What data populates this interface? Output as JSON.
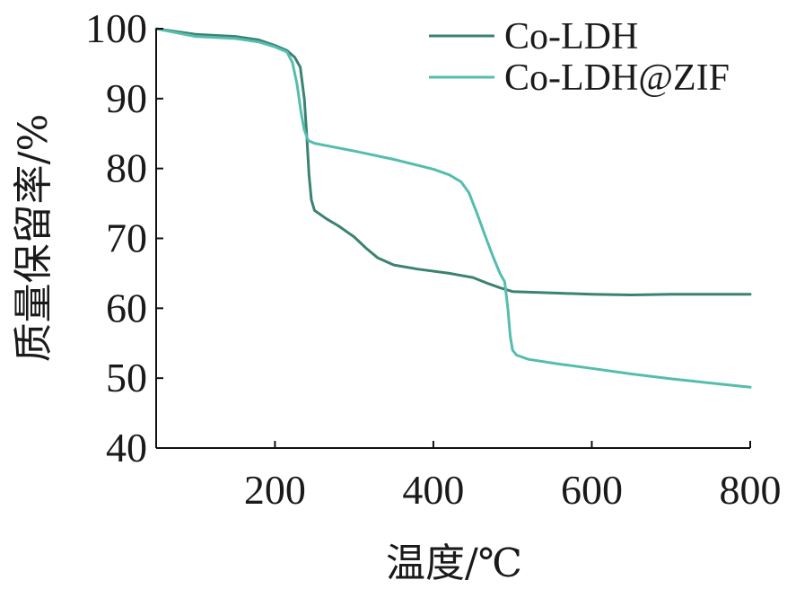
{
  "chart_data": {
    "type": "line",
    "xlabel": "温度/℃",
    "ylabel": "质量保留率/%",
    "xlim": [
      50,
      800
    ],
    "ylim": [
      40,
      100
    ],
    "xticks": [
      200,
      400,
      600,
      800
    ],
    "yticks": [
      40,
      50,
      60,
      70,
      80,
      90,
      100
    ],
    "grid": false,
    "legend_position": "top-right",
    "series": [
      {
        "name": "Co-LDH",
        "color": "#3a8272",
        "points": [
          [
            50,
            100
          ],
          [
            100,
            99.2
          ],
          [
            150,
            98.9
          ],
          [
            180,
            98.4
          ],
          [
            200,
            97.6
          ],
          [
            215,
            96.9
          ],
          [
            225,
            95.9
          ],
          [
            232,
            94.5
          ],
          [
            237,
            90
          ],
          [
            240,
            85
          ],
          [
            243,
            79
          ],
          [
            246,
            75.5
          ],
          [
            250,
            74
          ],
          [
            265,
            72.8
          ],
          [
            280,
            71.8
          ],
          [
            300,
            70.2
          ],
          [
            315,
            68.6
          ],
          [
            330,
            67.2
          ],
          [
            350,
            66.2
          ],
          [
            380,
            65.6
          ],
          [
            420,
            65
          ],
          [
            450,
            64.4
          ],
          [
            470,
            63.5
          ],
          [
            485,
            62.9
          ],
          [
            500,
            62.4
          ],
          [
            550,
            62.2
          ],
          [
            600,
            62
          ],
          [
            650,
            61.9
          ],
          [
            700,
            62
          ],
          [
            750,
            62
          ],
          [
            800,
            62
          ]
        ]
      },
      {
        "name": "Co-LDH@ZIF",
        "color": "#55bdad",
        "points": [
          [
            50,
            100
          ],
          [
            100,
            98.9
          ],
          [
            150,
            98.6
          ],
          [
            180,
            98.1
          ],
          [
            200,
            97.4
          ],
          [
            215,
            96.7
          ],
          [
            222,
            95.2
          ],
          [
            228,
            92
          ],
          [
            233,
            88
          ],
          [
            237,
            85.5
          ],
          [
            242,
            84
          ],
          [
            250,
            83.6
          ],
          [
            300,
            82.5
          ],
          [
            350,
            81.3
          ],
          [
            400,
            79.9
          ],
          [
            420,
            79.1
          ],
          [
            435,
            78.1
          ],
          [
            445,
            76.5
          ],
          [
            455,
            73.6
          ],
          [
            465,
            70.5
          ],
          [
            475,
            67.5
          ],
          [
            484,
            65
          ],
          [
            490,
            63.8
          ],
          [
            494,
            60
          ],
          [
            497,
            56
          ],
          [
            500,
            54
          ],
          [
            505,
            53.3
          ],
          [
            520,
            52.7
          ],
          [
            560,
            52
          ],
          [
            600,
            51.4
          ],
          [
            650,
            50.6
          ],
          [
            700,
            49.9
          ],
          [
            750,
            49.3
          ],
          [
            800,
            48.7
          ]
        ]
      }
    ]
  }
}
